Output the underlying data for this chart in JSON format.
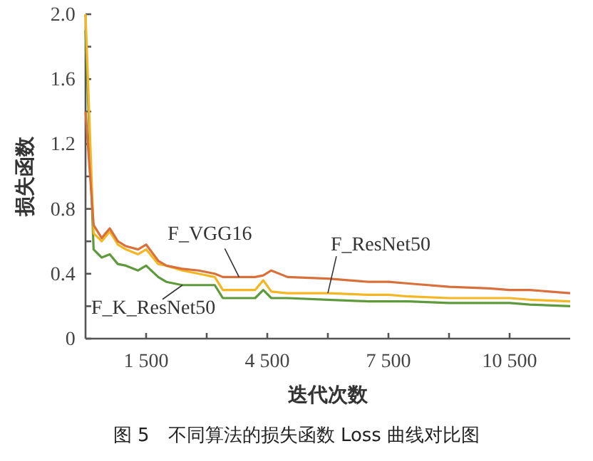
{
  "chart_data": {
    "type": "line",
    "xlabel": "迭代次数",
    "ylabel": "损失函数",
    "xlim": [
      0,
      12000
    ],
    "ylim": [
      0,
      2
    ],
    "xticks": [
      {
        "value": 1500,
        "label": "1 500"
      },
      {
        "value": 3000,
        "label": null
      },
      {
        "value": 4500,
        "label": "4 500"
      },
      {
        "value": 6000,
        "label": null
      },
      {
        "value": 7500,
        "label": "7 500"
      },
      {
        "value": 9000,
        "label": null
      },
      {
        "value": 10500,
        "label": "10 500"
      }
    ],
    "yticks": [
      0,
      {
        "value": 0.2,
        "label": null
      },
      0.4,
      {
        "value": 0.6,
        "label": null
      },
      0.8,
      {
        "value": 1,
        "label": null
      },
      1.2,
      {
        "value": 1.4,
        "label": null
      },
      1.6,
      {
        "value": 1.8,
        "label": null
      },
      {
        "value": 2,
        "label": "2.0"
      }
    ],
    "grid": false,
    "marker": "none",
    "line_style": "solid",
    "x": [
      0,
      200,
      400,
      600,
      800,
      1000,
      1300,
      1500,
      1800,
      2000,
      2400,
      2800,
      3200,
      3400,
      3800,
      4200,
      4400,
      4600,
      5000,
      6000,
      7000,
      7500,
      8000,
      9000,
      10000,
      10500,
      11000,
      12000
    ],
    "series": [
      {
        "color": "#d8703c",
        "values": [
          1.4,
          0.7,
          0.62,
          0.68,
          0.6,
          0.57,
          0.55,
          0.58,
          0.48,
          0.45,
          0.43,
          0.42,
          0.4,
          0.38,
          0.38,
          0.38,
          0.39,
          0.42,
          0.38,
          0.37,
          0.35,
          0.35,
          0.34,
          0.32,
          0.31,
          0.3,
          0.3,
          0.28
        ]
      },
      {
        "color": "#f4b622",
        "values": [
          2.0,
          0.65,
          0.6,
          0.66,
          0.58,
          0.55,
          0.52,
          0.55,
          0.46,
          0.45,
          0.42,
          0.4,
          0.38,
          0.3,
          0.3,
          0.3,
          0.36,
          0.29,
          0.28,
          0.28,
          0.27,
          0.27,
          0.26,
          0.25,
          0.25,
          0.25,
          0.24,
          0.23
        ]
      },
      {
        "color": "#5e9a3c",
        "values": [
          1.9,
          0.55,
          0.5,
          0.52,
          0.46,
          0.45,
          0.42,
          0.45,
          0.38,
          0.35,
          0.33,
          0.33,
          0.33,
          0.25,
          0.25,
          0.25,
          0.3,
          0.25,
          0.25,
          0.24,
          0.23,
          0.23,
          0.23,
          0.22,
          0.22,
          0.22,
          0.21,
          0.2
        ]
      }
    ],
    "annotations": [
      {
        "text": "F_VGG16",
        "x": 3800,
        "y": 0.38
      },
      {
        "text": "F_ResNet50",
        "x": 6000,
        "y": 0.28
      },
      {
        "text": "F_K_ResNet50",
        "x": 2400,
        "y": 0.33
      },
      "图 5　不同算法的损失函数 Loss 曲线对比图"
    ]
  }
}
